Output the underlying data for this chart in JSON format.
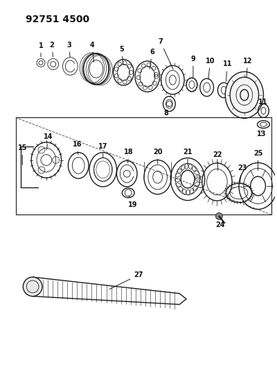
{
  "title": "92751 4500",
  "bg_color": "#ffffff",
  "line_color": "#1a1a1a",
  "label_color": "#111111",
  "label_fontsize": 7.0,
  "fig_width": 4.0,
  "fig_height": 5.33,
  "dpi": 100
}
